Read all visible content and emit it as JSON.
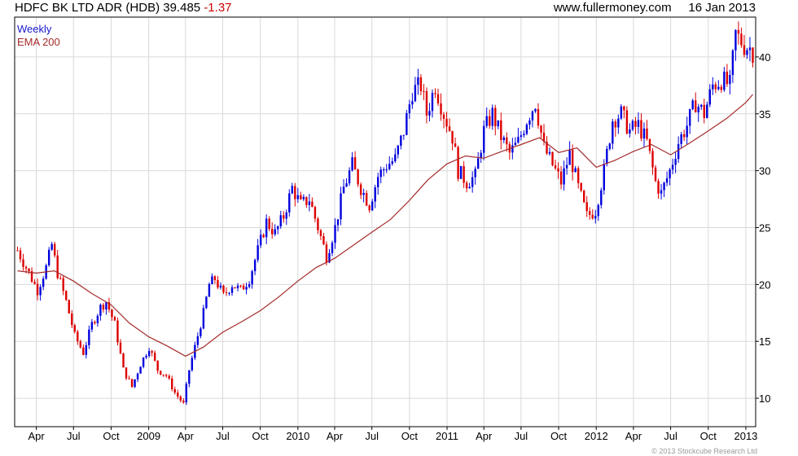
{
  "header": {
    "title": "HDFC BK LTD ADR (HDB)",
    "price": "39.485",
    "change": "-1.37",
    "site": "www.fullermoney.com",
    "date": "16 Jan 2013"
  },
  "legend": {
    "weekly": "Weekly",
    "ema": "EMA 200"
  },
  "copyright": "© 2013 Stockcube Research Ltd",
  "colors": {
    "up": "#0000dd",
    "down": "#dd0000",
    "ema": "#a52a2a",
    "grid": "#d9d9d9"
  },
  "chart_data": {
    "type": "candlestick",
    "title": "HDFC BK LTD ADR (HDB)",
    "grid": true,
    "legend_placement": "top-left",
    "y_axis_side": "right",
    "ylim": [
      7.5,
      43.5
    ],
    "yticks": [
      10,
      15,
      20,
      25,
      30,
      35,
      40
    ],
    "xlim": [
      "2008-02-08",
      "2013-01-25"
    ],
    "xticks": [
      {
        "label": "Apr",
        "date": "2008-04-01"
      },
      {
        "label": "Jul",
        "date": "2008-07-01"
      },
      {
        "label": "Oct",
        "date": "2008-10-01"
      },
      {
        "label": "2009",
        "date": "2009-01-01"
      },
      {
        "label": "Apr",
        "date": "2009-04-01"
      },
      {
        "label": "Jul",
        "date": "2009-07-01"
      },
      {
        "label": "Oct",
        "date": "2009-10-01"
      },
      {
        "label": "2010",
        "date": "2010-01-01"
      },
      {
        "label": "Apr",
        "date": "2010-04-01"
      },
      {
        "label": "Jul",
        "date": "2010-07-01"
      },
      {
        "label": "Oct",
        "date": "2010-10-01"
      },
      {
        "label": "2011",
        "date": "2011-01-01"
      },
      {
        "label": "Apr",
        "date": "2011-04-01"
      },
      {
        "label": "Jul",
        "date": "2011-07-01"
      },
      {
        "label": "Oct",
        "date": "2011-10-01"
      },
      {
        "label": "2012",
        "date": "2012-01-01"
      },
      {
        "label": "Apr",
        "date": "2012-04-01"
      },
      {
        "label": "Jul",
        "date": "2012-07-01"
      },
      {
        "label": "Oct",
        "date": "2012-10-01"
      },
      {
        "label": "2013",
        "date": "2013-01-01"
      }
    ],
    "price_path": [
      [
        "2008-02-15",
        23.0
      ],
      [
        "2008-03-07",
        21.5
      ],
      [
        "2008-04-04",
        19.5
      ],
      [
        "2008-04-25",
        21.5
      ],
      [
        "2008-05-09",
        23.5
      ],
      [
        "2008-05-23",
        21.0
      ],
      [
        "2008-06-13",
        18.5
      ],
      [
        "2008-07-04",
        15.5
      ],
      [
        "2008-07-25",
        14.0
      ],
      [
        "2008-08-15",
        16.5
      ],
      [
        "2008-09-05",
        18.0
      ],
      [
        "2008-09-19",
        18.5
      ],
      [
        "2008-10-10",
        16.5
      ],
      [
        "2008-10-31",
        12.5
      ],
      [
        "2008-11-21",
        11.0
      ],
      [
        "2008-12-12",
        13.0
      ],
      [
        "2009-01-02",
        14.5
      ],
      [
        "2009-01-23",
        12.5
      ],
      [
        "2009-02-13",
        12.0
      ],
      [
        "2009-03-06",
        10.5
      ],
      [
        "2009-03-27",
        9.5
      ],
      [
        "2009-04-10",
        12.5
      ],
      [
        "2009-05-01",
        15.5
      ],
      [
        "2009-05-15",
        17.5
      ],
      [
        "2009-05-29",
        20.0
      ],
      [
        "2009-06-12",
        20.5
      ],
      [
        "2009-07-03",
        19.0
      ],
      [
        "2009-07-24",
        20.0
      ],
      [
        "2009-08-14",
        19.5
      ],
      [
        "2009-09-04",
        20.5
      ],
      [
        "2009-09-25",
        23.0
      ],
      [
        "2009-10-16",
        25.5
      ],
      [
        "2009-11-06",
        24.5
      ],
      [
        "2009-11-27",
        26.0
      ],
      [
        "2009-12-18",
        28.5
      ],
      [
        "2010-01-08",
        27.0
      ],
      [
        "2010-01-29",
        27.5
      ],
      [
        "2010-02-19",
        25.0
      ],
      [
        "2010-03-12",
        22.5
      ],
      [
        "2010-04-02",
        25.0
      ],
      [
        "2010-04-23",
        28.5
      ],
      [
        "2010-05-14",
        30.5
      ],
      [
        "2010-06-04",
        28.5
      ],
      [
        "2010-06-25",
        27.0
      ],
      [
        "2010-07-16",
        29.5
      ],
      [
        "2010-08-06",
        30.5
      ],
      [
        "2010-08-27",
        31.0
      ],
      [
        "2010-09-17",
        33.5
      ],
      [
        "2010-10-08",
        37.0
      ],
      [
        "2010-10-29",
        37.5
      ],
      [
        "2010-11-12",
        35.0
      ],
      [
        "2010-12-03",
        37.5
      ],
      [
        "2010-12-24",
        35.0
      ],
      [
        "2011-01-14",
        33.0
      ],
      [
        "2011-01-28",
        30.0
      ],
      [
        "2011-02-18",
        29.0
      ],
      [
        "2011-03-11",
        29.5
      ],
      [
        "2011-04-01",
        33.5
      ],
      [
        "2011-04-22",
        35.0
      ],
      [
        "2011-05-13",
        33.0
      ],
      [
        "2011-06-03",
        31.5
      ],
      [
        "2011-06-24",
        32.5
      ],
      [
        "2011-07-15",
        34.5
      ],
      [
        "2011-08-05",
        36.0
      ],
      [
        "2011-08-26",
        32.0
      ],
      [
        "2011-09-16",
        30.5
      ],
      [
        "2011-10-07",
        29.0
      ],
      [
        "2011-10-28",
        31.5
      ],
      [
        "2011-11-18",
        28.5
      ],
      [
        "2011-12-09",
        26.0
      ],
      [
        "2011-12-30",
        26.5
      ],
      [
        "2012-01-20",
        30.0
      ],
      [
        "2012-02-10",
        34.5
      ],
      [
        "2012-03-02",
        35.0
      ],
      [
        "2012-03-23",
        33.5
      ],
      [
        "2012-04-13",
        34.0
      ],
      [
        "2012-05-04",
        32.5
      ],
      [
        "2012-05-25",
        29.0
      ],
      [
        "2012-06-08",
        28.0
      ],
      [
        "2012-06-29",
        30.0
      ],
      [
        "2012-07-20",
        32.5
      ],
      [
        "2012-08-10",
        34.0
      ],
      [
        "2012-08-31",
        36.0
      ],
      [
        "2012-09-21",
        35.0
      ],
      [
        "2012-10-12",
        37.5
      ],
      [
        "2012-11-02",
        38.0
      ],
      [
        "2012-11-23",
        37.5
      ],
      [
        "2012-12-07",
        42.0
      ],
      [
        "2012-12-28",
        41.0
      ],
      [
        "2013-01-11",
        40.8
      ],
      [
        "2013-01-18",
        39.485
      ]
    ],
    "ema200_path": [
      [
        "2008-02-15",
        21.2
      ],
      [
        "2008-04-01",
        21.0
      ],
      [
        "2008-05-15",
        21.2
      ],
      [
        "2008-07-01",
        20.3
      ],
      [
        "2008-08-15",
        19.2
      ],
      [
        "2008-10-01",
        18.2
      ],
      [
        "2008-11-15",
        16.6
      ],
      [
        "2009-01-01",
        15.4
      ],
      [
        "2009-02-15",
        14.6
      ],
      [
        "2009-04-01",
        13.7
      ],
      [
        "2009-05-15",
        14.5
      ],
      [
        "2009-07-01",
        15.8
      ],
      [
        "2009-08-15",
        16.7
      ],
      [
        "2009-10-01",
        17.7
      ],
      [
        "2009-11-15",
        18.9
      ],
      [
        "2010-01-01",
        20.3
      ],
      [
        "2010-02-15",
        21.5
      ],
      [
        "2010-04-01",
        22.3
      ],
      [
        "2010-05-15",
        23.4
      ],
      [
        "2010-07-01",
        24.6
      ],
      [
        "2010-08-15",
        25.7
      ],
      [
        "2010-10-01",
        27.4
      ],
      [
        "2010-11-15",
        29.2
      ],
      [
        "2011-01-01",
        30.6
      ],
      [
        "2011-02-15",
        31.3
      ],
      [
        "2011-04-01",
        31.1
      ],
      [
        "2011-05-15",
        31.7
      ],
      [
        "2011-07-01",
        32.3
      ],
      [
        "2011-08-15",
        32.9
      ],
      [
        "2011-10-01",
        31.6
      ],
      [
        "2011-11-15",
        32.0
      ],
      [
        "2012-01-01",
        30.3
      ],
      [
        "2012-02-15",
        30.9
      ],
      [
        "2012-04-01",
        31.7
      ],
      [
        "2012-05-15",
        32.3
      ],
      [
        "2012-07-01",
        31.4
      ],
      [
        "2012-08-15",
        32.4
      ],
      [
        "2012-10-01",
        33.5
      ],
      [
        "2012-11-15",
        34.6
      ],
      [
        "2013-01-01",
        36.0
      ],
      [
        "2013-01-18",
        36.7
      ]
    ]
  }
}
